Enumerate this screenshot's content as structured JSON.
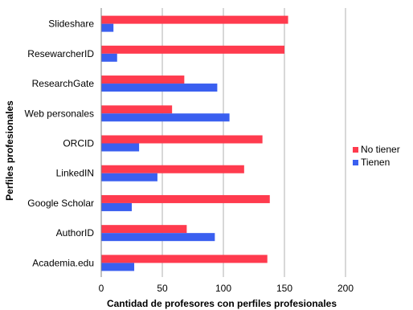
{
  "chart_data": {
    "type": "bar",
    "orientation": "horizontal",
    "categories": [
      "Slideshare",
      "ResewarcherID",
      "ResearchGate",
      "Web personales",
      "ORCID",
      "LinkedIN",
      "Google Scholar",
      "AuthorID",
      "Academia.edu"
    ],
    "series": [
      {
        "name": "No tiener",
        "color": "#ff3b4e",
        "values": [
          153,
          150,
          68,
          58,
          132,
          117,
          138,
          70,
          136
        ]
      },
      {
        "name": "Tienen",
        "color": "#3a5ff0",
        "values": [
          10,
          13,
          95,
          105,
          31,
          46,
          25,
          93,
          27
        ]
      }
    ],
    "xlabel": "Cantidad de profesores con perfiles profesionales",
    "ylabel": "Perfiles profesionales",
    "xlim": [
      0,
      200
    ],
    "xticks": [
      0,
      50,
      100,
      150,
      200
    ],
    "grid": true,
    "legend_position": "right"
  }
}
